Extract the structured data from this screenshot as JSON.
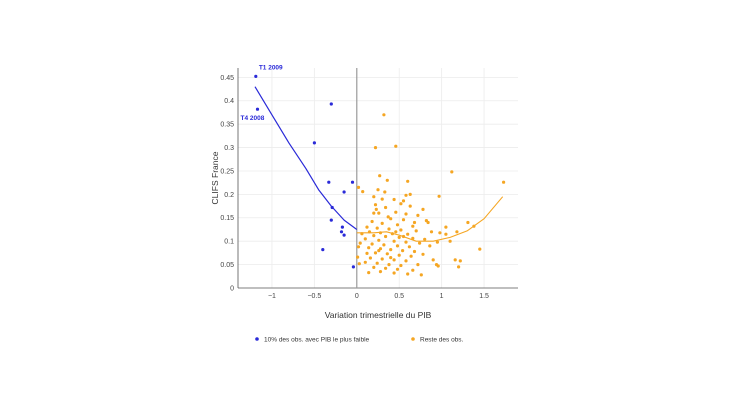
{
  "chart_data": {
    "type": "scatter",
    "title": "",
    "xlabel": "Variation trimestrielle du PIB",
    "ylabel": "CLIFS France",
    "xlim": [
      -1.4,
      1.9
    ],
    "ylim": [
      0,
      0.47
    ],
    "xticks": [
      -1,
      -0.5,
      0,
      0.5,
      1,
      1.5
    ],
    "xtick_labels": [
      "−1",
      "−0.5",
      "0",
      "0.5",
      "1",
      "1.5"
    ],
    "yticks": [
      0,
      0.05,
      0.1,
      0.15,
      0.2,
      0.25,
      0.3,
      0.35,
      0.4,
      0.45
    ],
    "ytick_labels": [
      "0",
      "0.05",
      "0.1",
      "0.15",
      "0.2",
      "0.25",
      "0.3",
      "0.35",
      "0.4",
      "0.45"
    ],
    "grid": true,
    "legend_position": "bottom",
    "annotations": [
      {
        "text": "T1 2009",
        "x": -1.19,
        "y": 0.452
      },
      {
        "text": "T4 2008",
        "x": -1.17,
        "y": 0.382
      }
    ],
    "series": [
      {
        "name": "10% des obs. avec PIB le plus faible",
        "color": "#2a2ad8",
        "points": [
          [
            -1.19,
            0.452
          ],
          [
            -1.17,
            0.382
          ],
          [
            -0.3,
            0.393
          ],
          [
            -0.5,
            0.31
          ],
          [
            -0.33,
            0.226
          ],
          [
            -0.05,
            0.226
          ],
          [
            -0.15,
            0.205
          ],
          [
            -0.29,
            0.172
          ],
          [
            -0.3,
            0.145
          ],
          [
            -0.17,
            0.13
          ],
          [
            -0.18,
            0.12
          ],
          [
            -0.15,
            0.113
          ],
          [
            -0.4,
            0.082
          ],
          [
            -0.04,
            0.045
          ]
        ],
        "trend": [
          [
            -1.2,
            0.43
          ],
          [
            -1.0,
            0.37
          ],
          [
            -0.8,
            0.31
          ],
          [
            -0.6,
            0.255
          ],
          [
            -0.45,
            0.21
          ],
          [
            -0.3,
            0.175
          ],
          [
            -0.15,
            0.145
          ],
          [
            0.0,
            0.125
          ]
        ]
      },
      {
        "name": "Reste des obs.",
        "color": "#f5a623",
        "points": [
          [
            0.32,
            0.37
          ],
          [
            0.46,
            0.303
          ],
          [
            0.22,
            0.3
          ],
          [
            1.12,
            0.248
          ],
          [
            1.73,
            0.226
          ],
          [
            0.27,
            0.24
          ],
          [
            0.36,
            0.23
          ],
          [
            0.6,
            0.228
          ],
          [
            0.02,
            0.215
          ],
          [
            0.07,
            0.206
          ],
          [
            0.25,
            0.21
          ],
          [
            0.33,
            0.205
          ],
          [
            0.58,
            0.198
          ],
          [
            0.97,
            0.196
          ],
          [
            0.2,
            0.195
          ],
          [
            0.3,
            0.19
          ],
          [
            0.44,
            0.189
          ],
          [
            0.55,
            0.186
          ],
          [
            0.63,
            0.2
          ],
          [
            0.22,
            0.178
          ],
          [
            0.52,
            0.18
          ],
          [
            0.63,
            0.175
          ],
          [
            0.34,
            0.172
          ],
          [
            0.78,
            0.168
          ],
          [
            0.23,
            0.168
          ],
          [
            0.26,
            0.16
          ],
          [
            0.46,
            0.162
          ],
          [
            0.58,
            0.158
          ],
          [
            0.72,
            0.155
          ],
          [
            1.31,
            0.14
          ],
          [
            0.4,
            0.148
          ],
          [
            0.55,
            0.146
          ],
          [
            0.82,
            0.144
          ],
          [
            0.18,
            0.142
          ],
          [
            0.3,
            0.138
          ],
          [
            0.48,
            0.135
          ],
          [
            0.66,
            0.132
          ],
          [
            1.05,
            0.13
          ],
          [
            0.12,
            0.13
          ],
          [
            0.24,
            0.128
          ],
          [
            0.38,
            0.126
          ],
          [
            0.52,
            0.124
          ],
          [
            0.7,
            0.122
          ],
          [
            0.88,
            0.12
          ],
          [
            0.15,
            0.12
          ],
          [
            0.28,
            0.118
          ],
          [
            0.42,
            0.116
          ],
          [
            0.6,
            0.115
          ],
          [
            0.98,
            0.118
          ],
          [
            1.18,
            0.12
          ],
          [
            1.38,
            0.132
          ],
          [
            0.06,
            0.116
          ],
          [
            0.2,
            0.112
          ],
          [
            0.34,
            0.11
          ],
          [
            0.5,
            0.108
          ],
          [
            0.66,
            0.106
          ],
          [
            0.8,
            0.104
          ],
          [
            0.1,
            0.105
          ],
          [
            0.26,
            0.102
          ],
          [
            0.44,
            0.1
          ],
          [
            0.58,
            0.098
          ],
          [
            0.74,
            0.096
          ],
          [
            0.95,
            0.098
          ],
          [
            1.1,
            0.1
          ],
          [
            0.04,
            0.096
          ],
          [
            0.18,
            0.094
          ],
          [
            0.32,
            0.092
          ],
          [
            0.48,
            0.09
          ],
          [
            0.62,
            0.088
          ],
          [
            0.86,
            0.09
          ],
          [
            0.02,
            0.088
          ],
          [
            0.14,
            0.086
          ],
          [
            0.28,
            0.084
          ],
          [
            0.4,
            0.082
          ],
          [
            0.54,
            0.08
          ],
          [
            0.68,
            0.078
          ],
          [
            1.45,
            0.083
          ],
          [
            0.22,
            0.075
          ],
          [
            0.36,
            0.073
          ],
          [
            0.5,
            0.07
          ],
          [
            0.64,
            0.068
          ],
          [
            0.78,
            0.072
          ],
          [
            0.01,
            0.066
          ],
          [
            0.16,
            0.064
          ],
          [
            0.3,
            0.062
          ],
          [
            0.44,
            0.06
          ],
          [
            0.58,
            0.058
          ],
          [
            1.16,
            0.06
          ],
          [
            1.22,
            0.058
          ],
          [
            0.1,
            0.055
          ],
          [
            0.24,
            0.053
          ],
          [
            0.38,
            0.05
          ],
          [
            0.52,
            0.048
          ],
          [
            0.72,
            0.05
          ],
          [
            0.96,
            0.047
          ],
          [
            0.03,
            0.052
          ],
          [
            0.2,
            0.044
          ],
          [
            0.34,
            0.042
          ],
          [
            0.48,
            0.04
          ],
          [
            0.66,
            0.038
          ],
          [
            0.94,
            0.05
          ],
          [
            0.28,
            0.035
          ],
          [
            0.44,
            0.032
          ],
          [
            0.6,
            0.03
          ],
          [
            0.76,
            0.028
          ],
          [
            0.14,
            0.033
          ],
          [
            0.26,
            0.08
          ],
          [
            0.12,
            0.074
          ],
          [
            0.4,
            0.065
          ],
          [
            1.2,
            0.045
          ],
          [
            0.55,
            0.11
          ],
          [
            0.46,
            0.12
          ],
          [
            0.37,
            0.152
          ],
          [
            0.2,
            0.16
          ],
          [
            0.68,
            0.14
          ],
          [
            0.9,
            0.06
          ],
          [
            0.84,
            0.14
          ],
          [
            1.05,
            0.115
          ]
        ],
        "trend": [
          [
            0.0,
            0.118
          ],
          [
            0.2,
            0.118
          ],
          [
            0.35,
            0.12
          ],
          [
            0.5,
            0.113
          ],
          [
            0.7,
            0.1
          ],
          [
            0.9,
            0.1
          ],
          [
            1.1,
            0.108
          ],
          [
            1.3,
            0.122
          ],
          [
            1.5,
            0.148
          ],
          [
            1.72,
            0.195
          ]
        ]
      }
    ]
  }
}
